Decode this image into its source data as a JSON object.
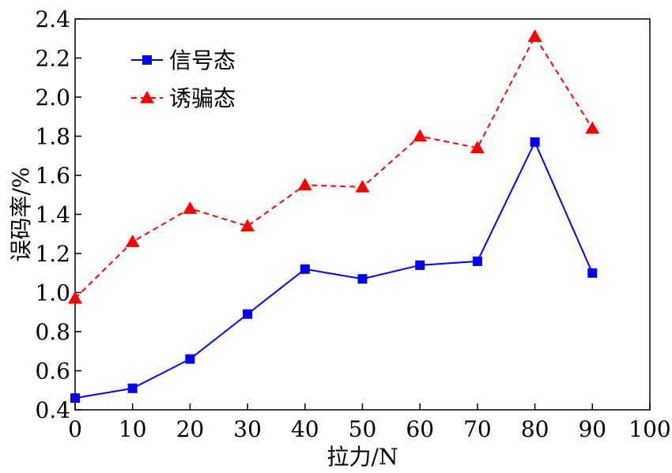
{
  "chart_data": {
    "type": "line",
    "title": "",
    "xlabel": "拉力/N",
    "ylabel": "误码率/%",
    "xlim": [
      0,
      100
    ],
    "ylim": [
      0.4,
      2.4
    ],
    "xticks": [
      0,
      10,
      20,
      30,
      40,
      50,
      60,
      70,
      80,
      90,
      100
    ],
    "yticks": [
      0.4,
      0.6,
      0.8,
      1.0,
      1.2,
      1.4,
      1.6,
      1.8,
      2.0,
      2.2,
      2.4
    ],
    "xtick_labels": [
      "0",
      "10",
      "20",
      "30",
      "40",
      "50",
      "60",
      "70",
      "80",
      "90",
      "100"
    ],
    "ytick_labels": [
      "0.4",
      "0.6",
      "0.8",
      "1.0",
      "1.2",
      "1.4",
      "1.6",
      "1.8",
      "2.0",
      "2.2",
      "2.4"
    ],
    "grid": false,
    "legend_position": "top-left",
    "x": [
      0,
      10,
      20,
      30,
      40,
      50,
      60,
      70,
      80,
      90
    ],
    "series": [
      {
        "name": "信号态",
        "color": "#0000ff",
        "marker": "square",
        "line_style": "solid",
        "values": [
          0.46,
          0.51,
          0.66,
          0.89,
          1.12,
          1.07,
          1.14,
          1.16,
          1.77,
          1.1
        ]
      },
      {
        "name": "诱骗态",
        "color": "#ff0000",
        "marker": "triangle",
        "line_style": "dashed",
        "values": [
          0.97,
          1.26,
          1.43,
          1.34,
          1.55,
          1.54,
          1.8,
          1.74,
          2.31,
          1.84
        ]
      }
    ]
  }
}
